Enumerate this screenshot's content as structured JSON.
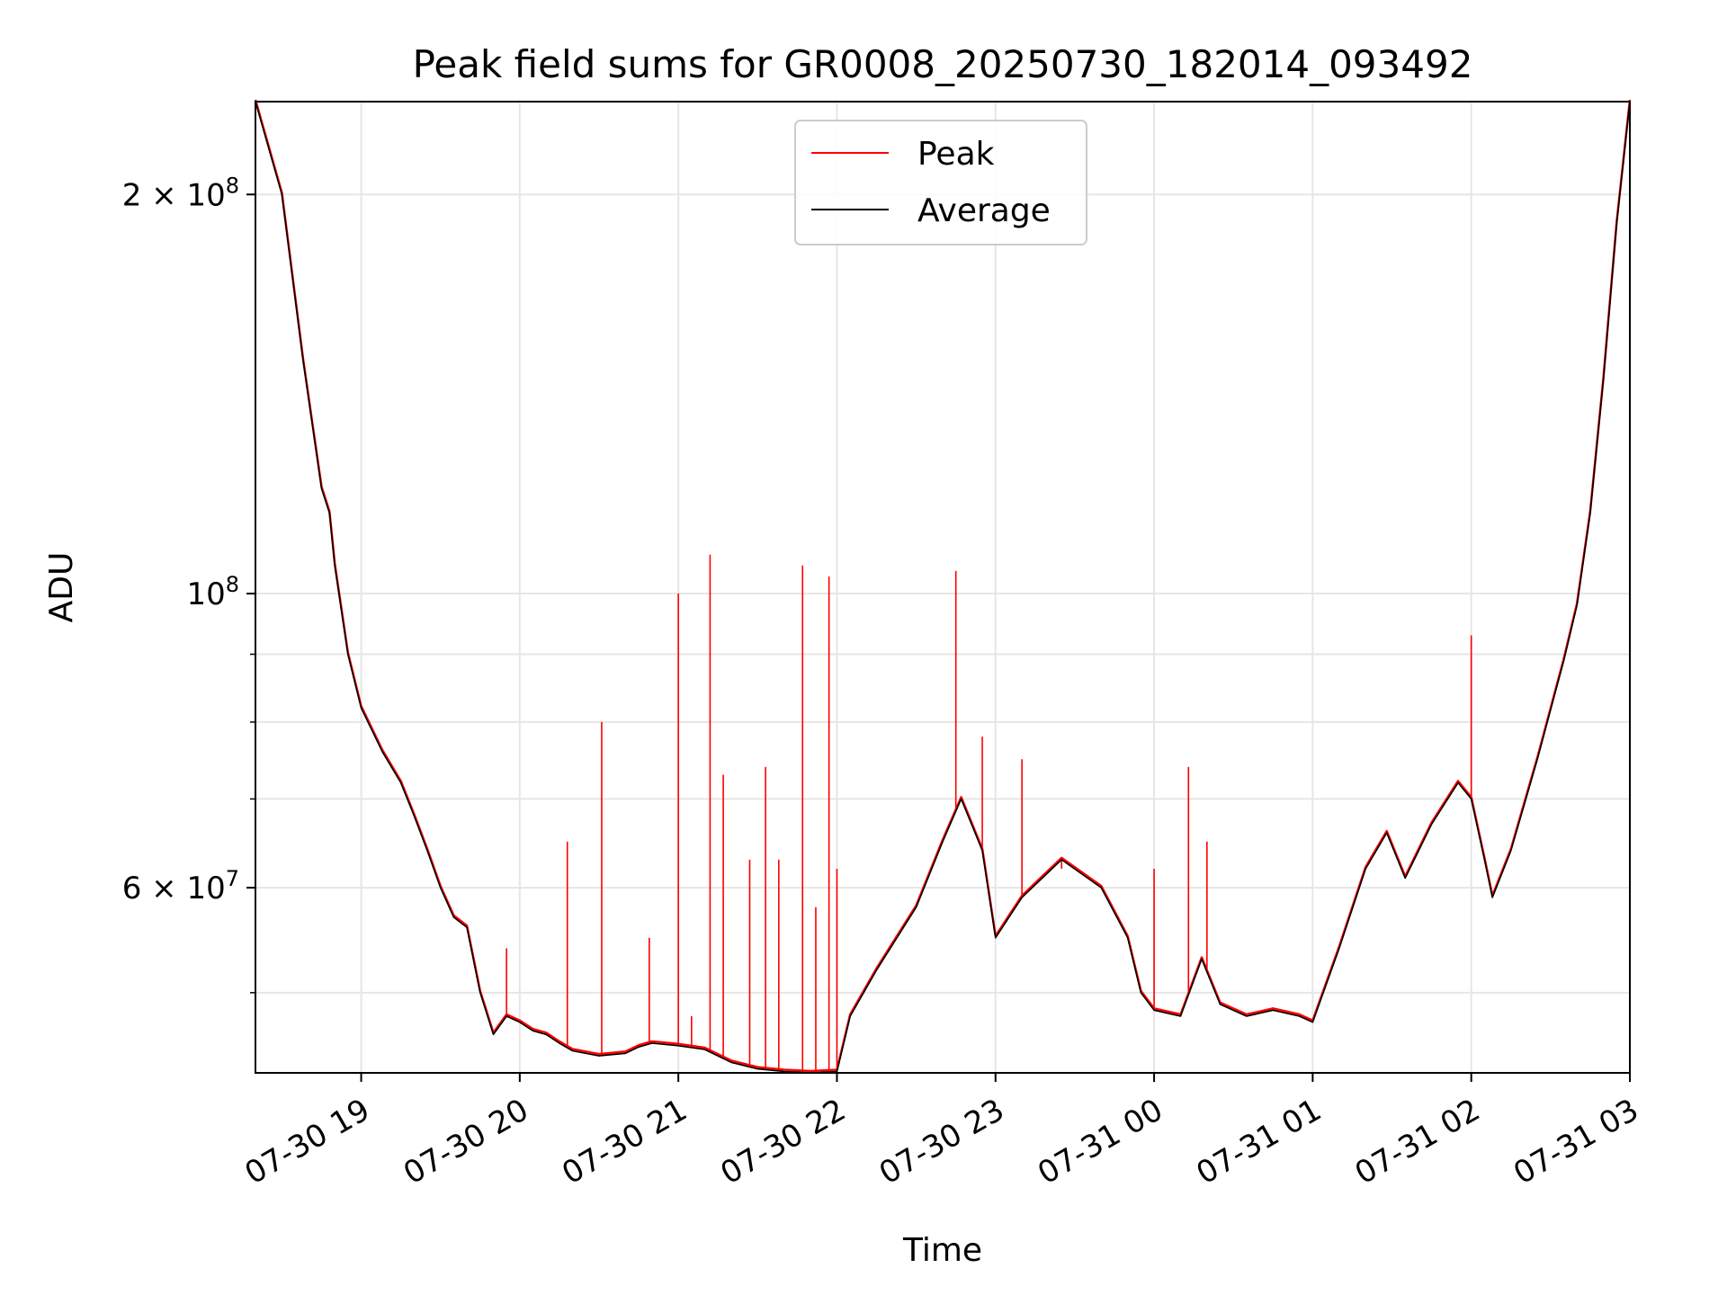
{
  "chart_data": {
    "type": "line",
    "title": "Peak field sums for GR0008_20250730_182014_093492",
    "xlabel": "Time",
    "ylabel": "ADU",
    "yscale": "log",
    "grid": true,
    "legend_placement": "upper center",
    "x_ticks": [
      "07-30 19",
      "07-30 20",
      "07-30 21",
      "07-30 22",
      "07-30 23",
      "07-31 00",
      "07-31 01",
      "07-31 02",
      "07-31 03"
    ],
    "y_tick_labels": [
      {
        "value": 200000000,
        "label": "2 × 10^8",
        "mantissa": "2 × 10",
        "exponent": "8"
      },
      {
        "value": 100000000,
        "label": "10^8",
        "mantissa": "10",
        "exponent": "8"
      },
      {
        "value": 60000000,
        "label": "6 × 10^7",
        "mantissa": "6 × 10",
        "exponent": "7"
      }
    ],
    "xlim": [
      "2025-07-30 18:20",
      "2025-07-31 03:00"
    ],
    "ylim": [
      43500000,
      235000000
    ],
    "x": [
      "2025-07-30 18:20",
      "2025-07-30 18:30",
      "2025-07-30 18:38",
      "2025-07-30 18:45",
      "2025-07-30 18:48",
      "2025-07-30 18:50",
      "2025-07-30 18:55",
      "2025-07-30 19:00",
      "2025-07-30 19:08",
      "2025-07-30 19:15",
      "2025-07-30 19:20",
      "2025-07-30 19:25",
      "2025-07-30 19:30",
      "2025-07-30 19:35",
      "2025-07-30 19:40",
      "2025-07-30 19:45",
      "2025-07-30 19:50",
      "2025-07-30 19:55",
      "2025-07-30 20:00",
      "2025-07-30 20:05",
      "2025-07-30 20:10",
      "2025-07-30 20:15",
      "2025-07-30 20:20",
      "2025-07-30 20:30",
      "2025-07-30 20:40",
      "2025-07-30 20:45",
      "2025-07-30 20:50",
      "2025-07-30 21:00",
      "2025-07-30 21:10",
      "2025-07-30 21:20",
      "2025-07-30 21:30",
      "2025-07-30 21:40",
      "2025-07-30 21:50",
      "2025-07-30 22:00",
      "2025-07-30 22:05",
      "2025-07-30 22:15",
      "2025-07-30 22:30",
      "2025-07-30 22:40",
      "2025-07-30 22:47",
      "2025-07-30 22:55",
      "2025-07-30 23:00",
      "2025-07-30 23:10",
      "2025-07-30 23:25",
      "2025-07-30 23:40",
      "2025-07-30 23:50",
      "2025-07-30 23:55",
      "2025-07-31 00:00",
      "2025-07-31 00:10",
      "2025-07-31 00:18",
      "2025-07-31 00:25",
      "2025-07-31 00:35",
      "2025-07-31 00:45",
      "2025-07-31 00:55",
      "2025-07-31 01:00",
      "2025-07-31 01:10",
      "2025-07-31 01:20",
      "2025-07-31 01:28",
      "2025-07-31 01:35",
      "2025-07-31 01:45",
      "2025-07-31 01:55",
      "2025-07-31 02:00",
      "2025-07-31 02:05",
      "2025-07-31 02:08",
      "2025-07-31 02:15",
      "2025-07-31 02:25",
      "2025-07-31 02:35",
      "2025-07-31 02:40",
      "2025-07-31 02:45",
      "2025-07-31 02:50",
      "2025-07-31 02:55",
      "2025-07-31 03:00"
    ],
    "series": [
      {
        "name": "Average",
        "color": "#000000",
        "values": [
          235000000,
          200000000,
          150000000,
          120000000,
          115000000,
          105000000,
          90000000,
          82000000,
          76000000,
          72000000,
          68000000,
          64000000,
          60000000,
          57000000,
          56000000,
          50000000,
          46500000,
          48000000,
          47500000,
          46800000,
          46500000,
          45800000,
          45200000,
          44800000,
          45000000,
          45500000,
          45800000,
          45600000,
          45300000,
          44300000,
          43800000,
          43600000,
          43500000,
          43600000,
          48000000,
          52000000,
          58000000,
          65000000,
          70000000,
          64000000,
          55000000,
          59000000,
          63000000,
          60000000,
          55000000,
          50000000,
          48500000,
          48000000,
          53000000,
          49000000,
          48000000,
          48500000,
          48000000,
          47500000,
          54000000,
          62000000,
          66000000,
          61000000,
          67000000,
          72000000,
          70000000,
          63000000,
          59000000,
          64000000,
          75000000,
          89000000,
          98000000,
          115000000,
          145000000,
          190000000,
          235000000
        ]
      },
      {
        "name": "Peak",
        "color": "#ff0000",
        "spikes": [
          {
            "x": "2025-07-30 19:55",
            "y": 54000000
          },
          {
            "x": "2025-07-30 20:18",
            "y": 65000000
          },
          {
            "x": "2025-07-30 20:31",
            "y": 80000000
          },
          {
            "x": "2025-07-30 20:49",
            "y": 55000000
          },
          {
            "x": "2025-07-30 21:00",
            "y": 100000000
          },
          {
            "x": "2025-07-30 21:05",
            "y": 48000000
          },
          {
            "x": "2025-07-30 21:12",
            "y": 107000000
          },
          {
            "x": "2025-07-30 21:17",
            "y": 73000000
          },
          {
            "x": "2025-07-30 21:27",
            "y": 63000000
          },
          {
            "x": "2025-07-30 21:33",
            "y": 74000000
          },
          {
            "x": "2025-07-30 21:38",
            "y": 63000000
          },
          {
            "x": "2025-07-30 21:47",
            "y": 105000000
          },
          {
            "x": "2025-07-30 21:52",
            "y": 58000000
          },
          {
            "x": "2025-07-30 21:57",
            "y": 103000000
          },
          {
            "x": "2025-07-30 22:00",
            "y": 62000000
          },
          {
            "x": "2025-07-30 22:45",
            "y": 104000000
          },
          {
            "x": "2025-07-30 22:55",
            "y": 78000000
          },
          {
            "x": "2025-07-30 23:10",
            "y": 75000000
          },
          {
            "x": "2025-07-30 23:25",
            "y": 62000000
          },
          {
            "x": "2025-07-31 00:00",
            "y": 62000000
          },
          {
            "x": "2025-07-31 00:13",
            "y": 74000000
          },
          {
            "x": "2025-07-31 00:20",
            "y": 65000000
          },
          {
            "x": "2025-07-31 02:00",
            "y": 93000000
          }
        ]
      }
    ]
  }
}
